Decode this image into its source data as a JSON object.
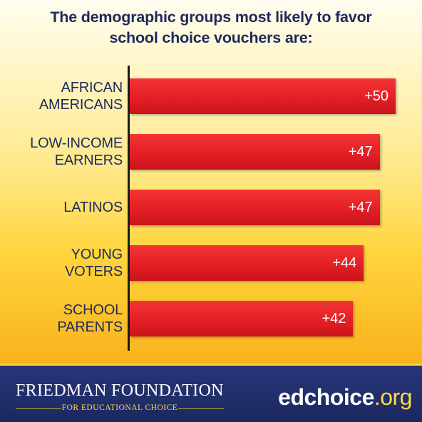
{
  "title_lines": [
    "The demographic groups most likely to favor",
    "school choice vouchers are:"
  ],
  "chart_data": {
    "type": "bar",
    "orientation": "horizontal",
    "title": "The demographic groups most likely to favor school choice vouchers are:",
    "categories": [
      "AFRICAN\nAMERICANS",
      "LOW-INCOME\nEARNERS",
      "LATINOS",
      "YOUNG\nVOTERS",
      "SCHOOL\nPARENTS"
    ],
    "values": [
      50,
      47,
      47,
      44,
      42
    ],
    "value_labels": [
      "+50",
      "+47",
      "+47",
      "+44",
      "+42"
    ],
    "xlim": [
      0,
      52
    ],
    "grid": false,
    "legend": "none",
    "bar_color": "#e51f25"
  },
  "footer": {
    "foundation_name": "FRIEDMAN FOUNDATION",
    "foundation_subtitle": "FOR EDUCATIONAL CHOICE",
    "website_main": "edchoice",
    "website_tld": ".org"
  },
  "colors": {
    "title": "#1e2a5c",
    "footer_bg": "#1b285f",
    "accent_yellow": "#ffd84a"
  }
}
